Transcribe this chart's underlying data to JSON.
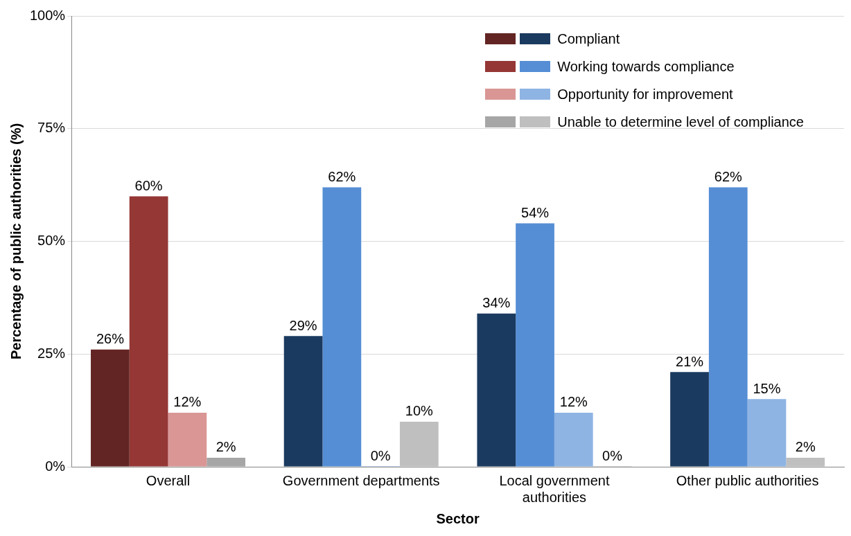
{
  "chart_data": {
    "type": "bar",
    "xlabel": "Sector",
    "ylabel": "Percentage of public authorities (%)",
    "categories": [
      "Overall",
      "Government departments",
      "Local government authorities",
      "Other public authorities"
    ],
    "series": [
      {
        "name": "Compliant",
        "colors": [
          "#632523",
          "#1b3a5f",
          "#1b3a5f",
          "#1b3a5f"
        ],
        "values": [
          26,
          29,
          34,
          21
        ],
        "value_labels": [
          "26%",
          "29%",
          "34%",
          "21%"
        ]
      },
      {
        "name": "Working towards compliance",
        "colors": [
          "#953735",
          "#558ed5",
          "#558ed5",
          "#558ed5"
        ],
        "values": [
          60,
          62,
          54,
          62
        ],
        "value_labels": [
          "60%",
          "62%",
          "54%",
          "62%"
        ]
      },
      {
        "name": "Opportunity for improvement",
        "colors": [
          "#d99694",
          "#8eb4e3",
          "#8eb4e3",
          "#8eb4e3"
        ],
        "values": [
          12,
          0,
          12,
          15
        ],
        "value_labels": [
          "12%",
          "0%",
          "12%",
          "15%"
        ]
      },
      {
        "name": "Unable to determine level of compliance",
        "colors": [
          "#a6a6a6",
          "#bfbfbf",
          "#bfbfbf",
          "#bfbfbf"
        ],
        "values": [
          2,
          10,
          0,
          2
        ],
        "value_labels": [
          "2%",
          "10%",
          "0%",
          "2%"
        ]
      }
    ],
    "ylim": [
      0,
      100
    ],
    "yticks": [
      {
        "value": 0,
        "label": "0%"
      },
      {
        "value": 25,
        "label": "25%"
      },
      {
        "value": 50,
        "label": "50%"
      },
      {
        "value": 75,
        "label": "75%"
      },
      {
        "value": 100,
        "label": "100%"
      }
    ],
    "grid": "y",
    "legend": "top right"
  }
}
